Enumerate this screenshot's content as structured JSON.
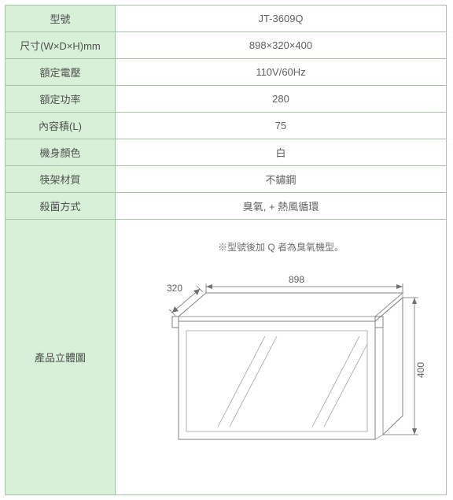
{
  "rows": [
    {
      "label": "型號",
      "value": "JT-3609Q"
    },
    {
      "label": "尺寸(W×D×H)mm",
      "value": "898×320×400"
    },
    {
      "label": "額定電壓",
      "value": "110V/60Hz"
    },
    {
      "label": "額定功率",
      "value": "280"
    },
    {
      "label": "內容積(L)",
      "value": "75"
    },
    {
      "label": "機身顏色",
      "value": "白"
    },
    {
      "label": "筷架材質",
      "value": "不鏽鋼"
    },
    {
      "label": "殺菌方式",
      "value": "臭氧, + 熱風循環"
    }
  ],
  "diagram": {
    "row_label": "產品立體圖",
    "note": "※型號後加 Q 者為臭氧機型。",
    "dim_width": "898",
    "dim_depth": "320",
    "dim_height": "400"
  },
  "style": {
    "header_bg": "#d7f0d7",
    "border_color": "#a8c2a8",
    "text_color": "#555555",
    "dim_color": "#707070",
    "outline_color": "#808080"
  }
}
